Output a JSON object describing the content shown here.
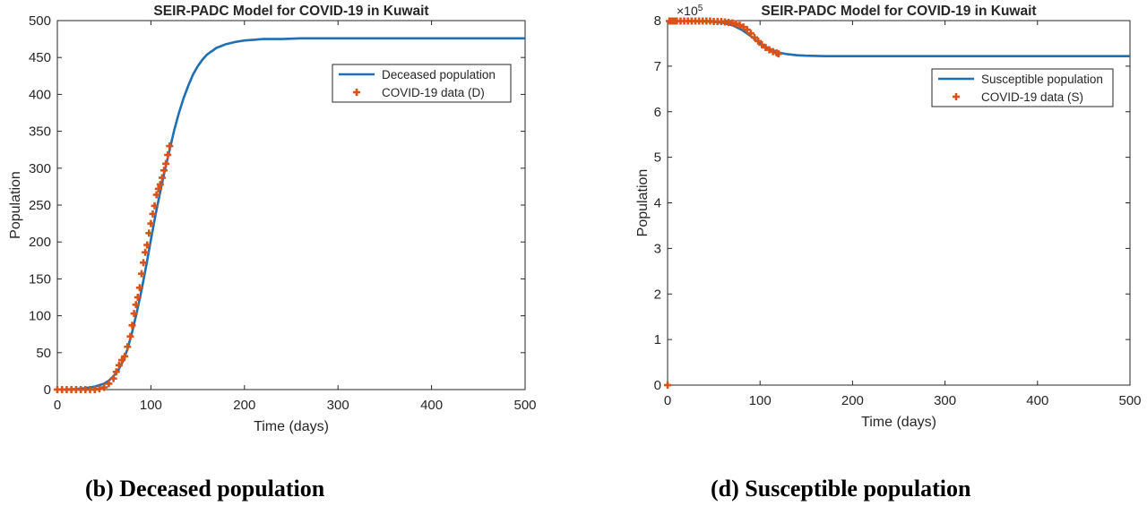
{
  "chart_data": [
    {
      "type": "line",
      "title": "SEIR-PADC Model for COVID-19 in Kuwait",
      "xlabel": "Time (days)",
      "ylabel": "Population",
      "xlim": [
        0,
        500
      ],
      "ylim": [
        0,
        500
      ],
      "x_ticks": [
        0,
        100,
        200,
        300,
        400,
        500
      ],
      "y_ticks": [
        0,
        50,
        100,
        150,
        200,
        250,
        300,
        350,
        400,
        450,
        500
      ],
      "grid": false,
      "legend_position": "top-right",
      "caption": "(b)  Deceased population",
      "series": [
        {
          "name": "Deceased population",
          "style": "line",
          "color": "#1f6fb4",
          "x": [
            0,
            10,
            20,
            30,
            40,
            50,
            55,
            60,
            65,
            70,
            75,
            80,
            85,
            90,
            95,
            100,
            105,
            110,
            115,
            120,
            125,
            130,
            135,
            140,
            145,
            150,
            155,
            160,
            170,
            180,
            190,
            200,
            210,
            220,
            240,
            260,
            300,
            400,
            500
          ],
          "y": [
            0,
            0.3,
            0.8,
            2,
            4,
            8,
            12,
            18,
            26,
            38,
            55,
            78,
            105,
            135,
            168,
            203,
            237,
            268,
            298,
            325,
            352,
            375,
            395,
            412,
            427,
            438,
            447,
            454,
            463,
            468,
            471,
            473,
            474,
            475,
            475,
            476,
            476,
            476,
            476
          ]
        },
        {
          "name": "COVID-19 data (D)",
          "style": "marker",
          "marker": "plus",
          "color": "#d95319",
          "x": [
            0,
            5,
            10,
            15,
            20,
            25,
            30,
            35,
            40,
            45,
            50,
            55,
            60,
            63,
            66,
            69,
            72,
            75,
            78,
            80,
            82,
            84,
            86,
            88,
            90,
            92,
            94,
            96,
            98,
            100,
            102,
            104,
            106,
            108,
            110,
            112,
            114,
            116,
            118,
            120
          ],
          "y": [
            0,
            0,
            0,
            0,
            0,
            0,
            0,
            0,
            0,
            1,
            3,
            8,
            15,
            24,
            33,
            40,
            45,
            58,
            72,
            87,
            103,
            115,
            125,
            138,
            157,
            172,
            186,
            196,
            212,
            225,
            238,
            249,
            264,
            272,
            278,
            287,
            297,
            306,
            318,
            330
          ]
        }
      ]
    },
    {
      "type": "line",
      "title": "SEIR-PADC Model for COVID-19 in Kuwait",
      "xlabel": "Time (days)",
      "ylabel": "Population",
      "y_exponent": "×10^5",
      "y_exponent_base": "×10",
      "y_exponent_power": "5",
      "xlim": [
        0,
        500
      ],
      "ylim": [
        0,
        8
      ],
      "x_ticks": [
        0,
        100,
        200,
        300,
        400,
        500
      ],
      "y_ticks": [
        0,
        1,
        2,
        3,
        4,
        5,
        6,
        7,
        8
      ],
      "grid": false,
      "legend_position": "top-right",
      "caption": "(d) Susceptible population",
      "series": [
        {
          "name": "Susceptible population",
          "style": "line",
          "color": "#1f6fb4",
          "x": [
            0,
            20,
            40,
            50,
            60,
            70,
            80,
            90,
            100,
            110,
            120,
            130,
            140,
            150,
            170,
            200,
            300,
            400,
            500
          ],
          "y": [
            7.99,
            7.99,
            7.98,
            7.97,
            7.95,
            7.9,
            7.8,
            7.66,
            7.5,
            7.38,
            7.3,
            7.26,
            7.24,
            7.23,
            7.22,
            7.22,
            7.22,
            7.22,
            7.22
          ]
        },
        {
          "name": "COVID-19 data (S)",
          "style": "marker",
          "marker": "plus",
          "color": "#d95319",
          "x": [
            0,
            2,
            4,
            6,
            8,
            10,
            14,
            18,
            22,
            26,
            30,
            34,
            38,
            42,
            46,
            50,
            54,
            58,
            62,
            66,
            70,
            74,
            78,
            82,
            86,
            90,
            94,
            98,
            102,
            106,
            110,
            114,
            118,
            120
          ],
          "y": [
            0,
            7.99,
            7.99,
            7.99,
            7.99,
            7.99,
            7.99,
            7.99,
            7.99,
            7.99,
            7.99,
            7.99,
            7.99,
            7.99,
            7.99,
            7.98,
            7.98,
            7.98,
            7.97,
            7.96,
            7.95,
            7.93,
            7.9,
            7.86,
            7.8,
            7.72,
            7.63,
            7.55,
            7.47,
            7.41,
            7.36,
            7.32,
            7.29,
            7.27
          ]
        }
      ]
    }
  ]
}
